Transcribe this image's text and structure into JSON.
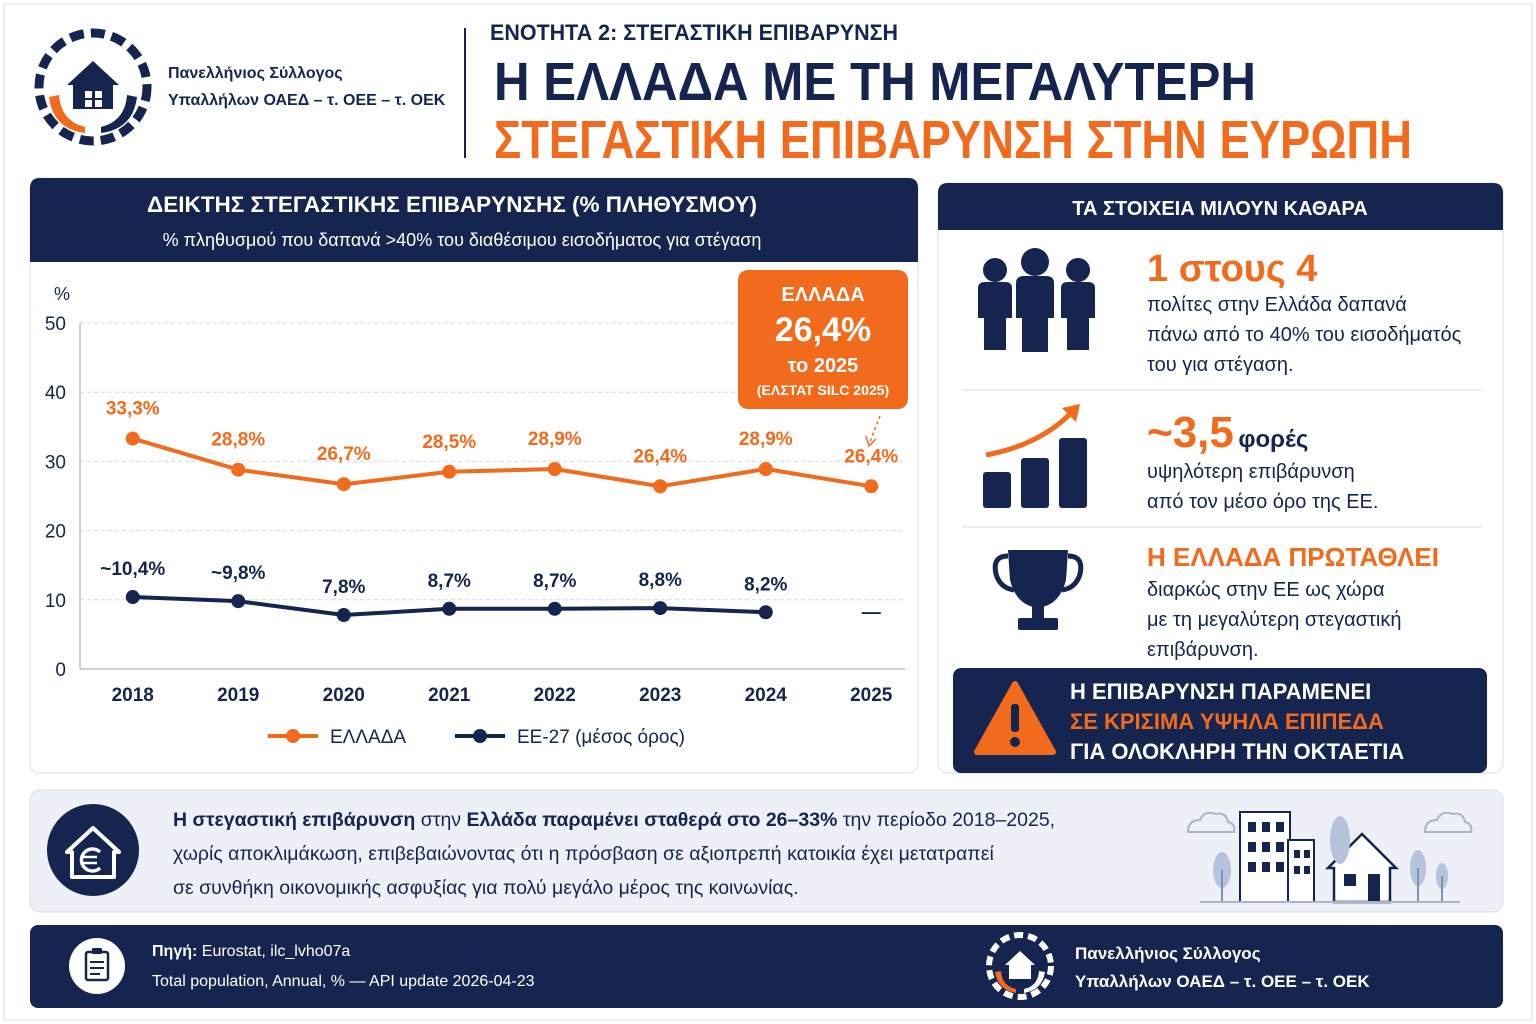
{
  "header": {
    "org_lines": [
      "Πανελλήνιος Σύλλογος",
      "Υπαλλήλων ΟΑΕΔ – τ. ΟΕΕ – τ. ΟΕΚ"
    ],
    "section": "ΕΝΟΤΗΤΑ 2: ΣΤΕΓΑΣΤΙΚΗ ΕΠΙΒΑΡΥΝΣΗ",
    "title_line1": "Η ΕΛΛΑΔΑ ΜΕ ΤΗ ΜΕΓΑΛΥΤΕΡΗ",
    "title_line2": "ΣΤΕΓΑΣΤΙΚΗ ΕΠΙΒΑΡΥΝΣΗ ΣΤΗΝ ΕΥΡΩΠΗ"
  },
  "chart_data": {
    "type": "line",
    "title": "ΔΕΙΚΤΗΣ ΣΤΕΓΑΣΤΙΚΗΣ ΕΠΙΒΑΡΥΝΣΗΣ (% ΠΛΗΘΥΣΜΟΥ)",
    "subtitle": "% πληθυσμού που δαπανά >40% του διαθέσιμου εισοδήματος για στέγαση",
    "y_label": "%",
    "categories": [
      "2018",
      "2019",
      "2020",
      "2021",
      "2022",
      "2023",
      "2024",
      "2025"
    ],
    "series": [
      {
        "name": "ΕΛΛΑΔΑ",
        "color": "#f26a1b",
        "values": [
          33.3,
          28.8,
          26.7,
          28.5,
          28.9,
          26.4,
          28.9,
          26.4
        ],
        "value_labels": [
          "33,3%",
          "28,8%",
          "26,7%",
          "28,5%",
          "28,9%",
          "26,4%",
          "28,9%",
          "26,4%"
        ]
      },
      {
        "name": "ΕΕ-27 (μέσος όρος)",
        "color": "#16254f",
        "values": [
          10.4,
          9.8,
          7.8,
          8.7,
          8.7,
          8.8,
          8.2,
          null
        ],
        "value_labels": [
          "~10,4%",
          "~9,8%",
          "7,8%",
          "8,7%",
          "8,7%",
          "8,8%",
          "8,2%",
          "—"
        ]
      }
    ],
    "ylim": [
      0,
      50
    ],
    "yticks": [
      0,
      10,
      20,
      30,
      40,
      50
    ],
    "grid": true,
    "legend": "bottom",
    "callout": {
      "label": "ΕΛΛΑΔΑ",
      "value": "26,4%",
      "year": "το 2025",
      "source": "(ΕΛΣΤΑΤ SILC 2025)"
    }
  },
  "facts": {
    "title": "ΤΑ ΣΤΟΙΧΕΙΑ ΜΙΛΟΥΝ ΚΑΘΑΡΑ",
    "items": [
      {
        "big": "1 στους 4",
        "lines": [
          "πολίτες στην Ελλάδα δαπανά",
          "πάνω από το 40% του εισοδήματός",
          "του για στέγαση."
        ]
      },
      {
        "big": "~3,5",
        "suffix": "φορές",
        "lines": [
          "υψηλότερη επιβάρυνση",
          "από τον μέσο όρο της ΕΕ."
        ]
      },
      {
        "big": "Η ΕΛΛΑΔΑ ΠΡΩΤΑΘΛΕΙ",
        "lines": [
          "διαρκώς στην ΕΕ ως χώρα",
          "με τη μεγαλύτερη στεγαστική",
          "επιβάρυνση."
        ]
      }
    ],
    "warning": [
      "Η ΕΠΙΒΑΡΥΝΣΗ ΠΑΡΑΜΕΝΕΙ",
      "ΣΕ ΚΡΙΣΙΜΑ ΥΨΗΛΑ ΕΠΙΠΕΔΑ",
      "ΓΙΑ ΟΛΟΚΛΗΡΗ ΤΗΝ ΟΚΤΑΕΤΙΑ"
    ]
  },
  "summary": {
    "runs": [
      "Η στεγαστική επιβάρυνση",
      "στην",
      "Ελλάδα παραμένει σταθερά στο 26–33%",
      "την περίοδο 2018–2025,"
    ],
    "lines": [
      "χωρίς αποκλιμάκωση, επιβεβαιώνοντας ότι η πρόσβαση σε αξιοπρεπή κατοικία έχει μετατραπεί",
      "σε συνθήκη οικονομικής ασφυξίας για πολύ μεγάλο μέρος της κοινωνίας."
    ]
  },
  "footer": {
    "source_label": "Πηγή:",
    "source": "Eurostat, ilc_lvho07a",
    "note": "Total population, Annual, % — API update 2026-04-23",
    "org_lines": [
      "Πανελλήνιος Σύλλογος",
      "Υπαλλήλων ΟΑΕΔ – τ. ΟΕΕ – τ. ΟΕΚ"
    ]
  }
}
